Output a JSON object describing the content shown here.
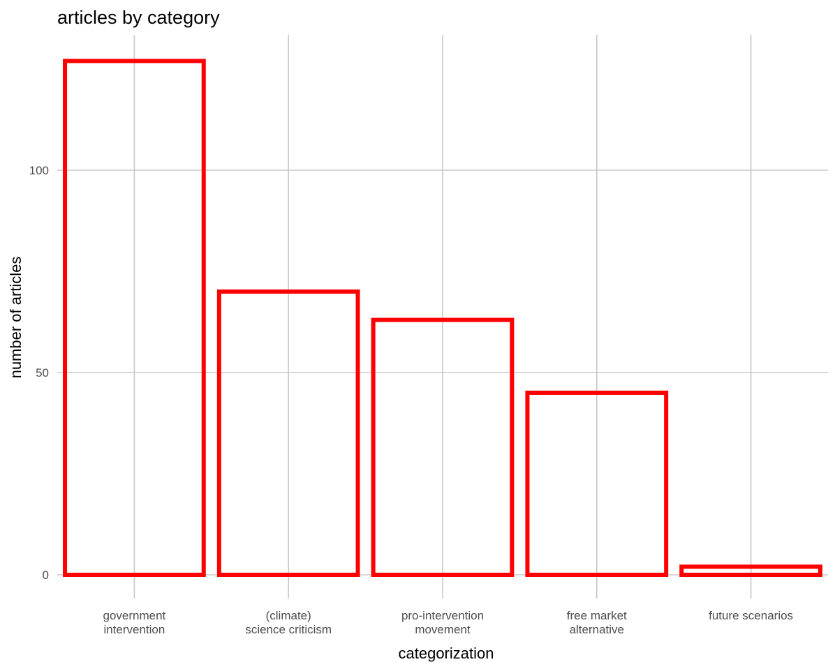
{
  "chart_data": {
    "type": "bar",
    "title": "articles by category",
    "xlabel": "categorization",
    "ylabel": "number of articles",
    "categories": [
      [
        "government",
        "intervention"
      ],
      [
        "(climate)",
        "science criticism"
      ],
      [
        "pro-intervention",
        "movement"
      ],
      [
        "free market",
        "alternative"
      ],
      [
        "future scenarios"
      ]
    ],
    "values": [
      127,
      70,
      63,
      45,
      2
    ],
    "ylim": [
      0,
      127
    ],
    "yticks": [
      0,
      50,
      100
    ],
    "ytick_labels": [
      "0",
      "50",
      "100"
    ],
    "grid": true,
    "bar_style": "outline",
    "bar_color": "#ff0000",
    "grid_color": "#c8c8c8"
  }
}
